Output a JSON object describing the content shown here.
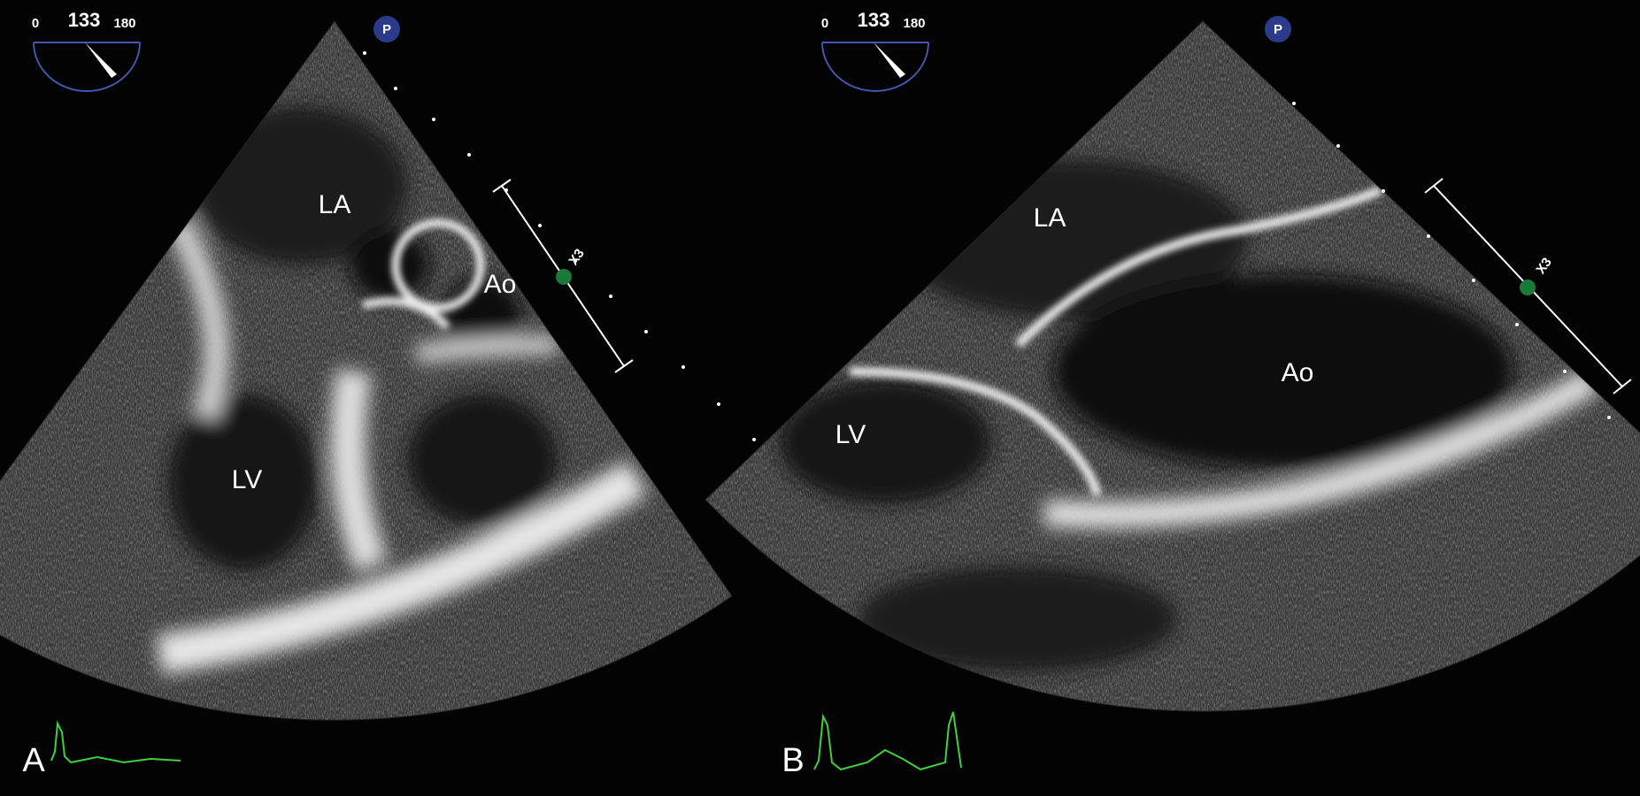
{
  "panels": [
    {
      "label": "A",
      "angle_min": "0",
      "angle": "133",
      "angle_max": "180",
      "probe_icon": "P",
      "scale_label": "X3",
      "structures": {
        "la": "LA",
        "ao": "Ao",
        "lv": "LV"
      }
    },
    {
      "label": "B",
      "angle_min": "0",
      "angle": "133",
      "angle_max": "180",
      "probe_icon": "P",
      "scale_label": "X3",
      "structures": {
        "la": "LA",
        "ao": "Ao",
        "lv": "LV"
      }
    }
  ]
}
